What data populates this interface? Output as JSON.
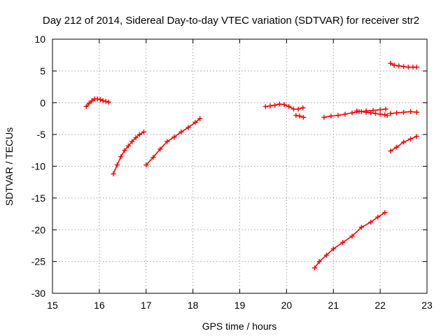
{
  "chart_data": {
    "type": "scatter",
    "title": "Day 212 of 2014, Sidereal Day-to-day VTEC variation (SDTVAR) for receiver str2",
    "xlabel": "GPS time / hours",
    "ylabel": "SDTVAR / TECUs",
    "xlim": [
      15,
      23
    ],
    "ylim": [
      -30,
      10
    ],
    "xticks": [
      15,
      16,
      17,
      18,
      19,
      20,
      21,
      22,
      23
    ],
    "yticks": [
      10,
      5,
      0,
      -5,
      -10,
      -15,
      -20,
      -25,
      -30
    ],
    "grid": true,
    "marker": "+",
    "color": "#ff0000",
    "series": [
      {
        "x": [
          15.72,
          15.78,
          15.84,
          15.9,
          15.96,
          16.02,
          16.08,
          16.14,
          16.2
        ],
        "y": [
          -0.6,
          -0.1,
          0.3,
          0.6,
          0.6,
          0.5,
          0.3,
          0.2,
          0.1
        ]
      },
      {
        "x": [
          16.3,
          16.38,
          16.46,
          16.54,
          16.62,
          16.7,
          16.78,
          16.86,
          16.95
        ],
        "y": [
          -11.2,
          -9.8,
          -8.5,
          -7.5,
          -6.8,
          -6.1,
          -5.5,
          -5.0,
          -4.6
        ]
      },
      {
        "x": [
          17.0,
          17.15,
          17.3,
          17.45,
          17.6,
          17.75,
          17.9,
          18.05,
          18.15
        ],
        "y": [
          -9.8,
          -8.6,
          -7.3,
          -6.1,
          -5.4,
          -4.6,
          -3.9,
          -3.1,
          -2.5
        ]
      },
      {
        "x": [
          19.55,
          19.65,
          19.75,
          19.85,
          19.95,
          20.05,
          20.15,
          20.25,
          20.35
        ],
        "y": [
          -0.6,
          -0.5,
          -0.4,
          -0.2,
          -0.3,
          -0.6,
          -1.0,
          -1.0,
          -0.8
        ]
      },
      {
        "x": [
          20.2,
          20.28,
          20.36
        ],
        "y": [
          -2.0,
          -2.1,
          -2.3
        ]
      },
      {
        "x": [
          20.8,
          20.95,
          21.1,
          21.25,
          21.4,
          21.55,
          21.7,
          21.85,
          22.0,
          22.12
        ],
        "y": [
          -2.3,
          -2.1,
          -2.0,
          -1.8,
          -1.6,
          -1.4,
          -1.3,
          -1.2,
          -1.1,
          -1.0
        ]
      },
      {
        "x": [
          21.5,
          21.6,
          21.7,
          21.8,
          21.9,
          22.0,
          22.1,
          22.15
        ],
        "y": [
          -1.3,
          -1.4,
          -1.5,
          -1.6,
          -1.7,
          -1.8,
          -1.9,
          -2.0
        ]
      },
      {
        "x": [
          20.6,
          20.7,
          20.85,
          21.0,
          21.2,
          21.4,
          21.6,
          21.8,
          21.95,
          22.1
        ],
        "y": [
          -26.0,
          -25.0,
          -24.0,
          -23.0,
          -22.0,
          -21.0,
          -19.6,
          -18.8,
          -18.0,
          -17.3
        ]
      },
      {
        "x": [
          22.22,
          22.3,
          22.4,
          22.5,
          22.6,
          22.7,
          22.78
        ],
        "y": [
          6.2,
          5.9,
          5.8,
          5.7,
          5.6,
          5.6,
          5.6
        ]
      },
      {
        "x": [
          22.22,
          22.35,
          22.5,
          22.65,
          22.78
        ],
        "y": [
          -1.7,
          -1.6,
          -1.5,
          -1.4,
          -1.5
        ]
      },
      {
        "x": [
          22.22,
          22.35,
          22.5,
          22.65,
          22.78
        ],
        "y": [
          -7.6,
          -7.0,
          -6.2,
          -5.7,
          -5.3
        ]
      }
    ]
  }
}
